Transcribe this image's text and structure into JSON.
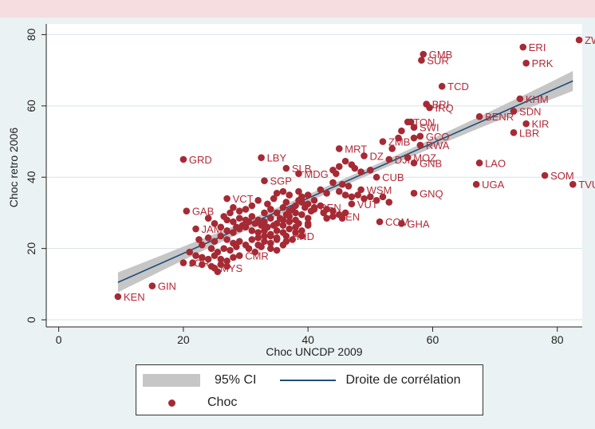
{
  "chart_data": {
    "type": "scatter",
    "xlabel": "Choc UNCDP 2009",
    "ylabel": "Choc retro 2006",
    "xlim": [
      -2,
      84
    ],
    "ylim": [
      -2,
      83
    ],
    "xticks": [
      0,
      20,
      40,
      60,
      80
    ],
    "yticks": [
      0,
      20,
      40,
      60,
      80
    ],
    "grid": "horizontal",
    "legend_position": "bottom",
    "colors": {
      "points": "#a52a34",
      "labels": "#b12a38",
      "fit": "#1f4e79",
      "ci": "#c6c6c6",
      "plot_bg": "#ffffff",
      "outer_bg": "#eaf2f3"
    },
    "fit_line": {
      "x": [
        9.5,
        82.5
      ],
      "y": [
        10.5,
        67
      ],
      "ci_halfwidth_ends": 2.8,
      "ci_halfwidth_mid": 1.0
    },
    "legend": {
      "ci_label": "95% CI",
      "line_label": "Droite de corrélation",
      "points_label": "Choc"
    },
    "labeled_points": [
      {
        "label": "ZWE",
        "x": 83.5,
        "y": 78.5
      },
      {
        "label": "ERI",
        "x": 74.5,
        "y": 76.5
      },
      {
        "label": "PRK",
        "x": 75.0,
        "y": 72.0
      },
      {
        "label": "GMB",
        "x": 58.5,
        "y": 74.5
      },
      {
        "label": "SUR",
        "x": 58.2,
        "y": 72.8
      },
      {
        "label": "TCD",
        "x": 61.5,
        "y": 65.5
      },
      {
        "label": "KHM",
        "x": 74.0,
        "y": 62.0
      },
      {
        "label": "SDN",
        "x": 73.0,
        "y": 58.5
      },
      {
        "label": "IRQ",
        "x": 59.5,
        "y": 59.5
      },
      {
        "label": "BRI",
        "x": 59.0,
        "y": 60.5
      },
      {
        "label": "BENR",
        "x": 67.5,
        "y": 57.0
      },
      {
        "label": "KIR",
        "x": 75.0,
        "y": 55.0
      },
      {
        "label": "LBR",
        "x": 73.0,
        "y": 52.5
      },
      {
        "label": "TON",
        "x": 56.0,
        "y": 55.5
      },
      {
        "label": "SWI",
        "x": 57.0,
        "y": 54.0
      },
      {
        "label": "GCO",
        "x": 58.0,
        "y": 51.5
      },
      {
        "label": "ZMB",
        "x": 52.0,
        "y": 50.0
      },
      {
        "label": "RWA",
        "x": 58.0,
        "y": 49.0
      },
      {
        "label": "MRT",
        "x": 45.0,
        "y": 48.0
      },
      {
        "label": "DZ",
        "x": 49.0,
        "y": 46.0
      },
      {
        "label": "MOZ",
        "x": 56.0,
        "y": 45.5
      },
      {
        "label": "DJI",
        "x": 53.0,
        "y": 45.0
      },
      {
        "label": "GNB",
        "x": 57.0,
        "y": 44.0
      },
      {
        "label": "LAO",
        "x": 67.5,
        "y": 44.0
      },
      {
        "label": "GRD",
        "x": 20.0,
        "y": 45.0
      },
      {
        "label": "LBY",
        "x": 32.5,
        "y": 45.5
      },
      {
        "label": "SLB",
        "x": 36.5,
        "y": 42.5
      },
      {
        "label": "MDG",
        "x": 38.5,
        "y": 41.0
      },
      {
        "label": "CUB",
        "x": 51.0,
        "y": 40.0
      },
      {
        "label": "SOM",
        "x": 78.0,
        "y": 40.5
      },
      {
        "label": "TVU",
        "x": 82.5,
        "y": 38.0
      },
      {
        "label": "UGA",
        "x": 67.0,
        "y": 38.0
      },
      {
        "label": "SGP",
        "x": 33.0,
        "y": 39.0
      },
      {
        "label": "GNQ",
        "x": 57.0,
        "y": 35.5
      },
      {
        "label": "WSM",
        "x": 48.5,
        "y": 36.5
      },
      {
        "label": "VCT",
        "x": 27.0,
        "y": 34.0
      },
      {
        "label": "VUT",
        "x": 47.0,
        "y": 32.5
      },
      {
        "label": "BEN",
        "x": 41.0,
        "y": 31.5
      },
      {
        "label": "GAB",
        "x": 20.5,
        "y": 30.5
      },
      {
        "label": "BEN",
        "x": 44.0,
        "y": 29.0
      },
      {
        "label": "COM",
        "x": 51.5,
        "y": 27.5
      },
      {
        "label": "GHA",
        "x": 55.0,
        "y": 27.0
      },
      {
        "label": "HND",
        "x": 36.5,
        "y": 23.5
      },
      {
        "label": "JAM",
        "x": 22.0,
        "y": 25.5
      },
      {
        "label": "CMR",
        "x": 29.0,
        "y": 18.0
      },
      {
        "label": "JOR",
        "x": 20.0,
        "y": 16.0
      },
      {
        "label": "MYS",
        "x": 25.0,
        "y": 14.5
      },
      {
        "label": "GIN",
        "x": 15.0,
        "y": 9.5
      },
      {
        "label": "KEN",
        "x": 9.5,
        "y": 6.5
      }
    ],
    "other_points": [
      [
        55,
        53
      ],
      [
        57,
        51
      ],
      [
        56.5,
        55.5
      ],
      [
        54.5,
        51
      ],
      [
        53.5,
        48
      ],
      [
        47,
        43.5
      ],
      [
        46,
        44.5
      ],
      [
        45,
        43
      ],
      [
        44,
        42
      ],
      [
        47.5,
        42.5
      ],
      [
        48.5,
        41.5
      ],
      [
        50,
        42
      ],
      [
        44.5,
        41
      ],
      [
        42,
        36.5
      ],
      [
        43,
        35.5
      ],
      [
        45,
        36
      ],
      [
        46,
        35
      ],
      [
        47,
        34.5
      ],
      [
        48,
        35
      ],
      [
        49,
        34
      ],
      [
        50,
        34.5
      ],
      [
        51,
        33.5
      ],
      [
        52,
        34.5
      ],
      [
        53,
        33
      ],
      [
        45.5,
        38
      ],
      [
        46.5,
        37.5
      ],
      [
        44,
        38.5
      ],
      [
        38.5,
        36
      ],
      [
        39,
        34.5
      ],
      [
        40,
        35
      ],
      [
        41,
        33.5
      ],
      [
        37,
        35
      ],
      [
        36,
        36
      ],
      [
        35,
        35.5
      ],
      [
        34.5,
        34
      ],
      [
        36.5,
        33
      ],
      [
        38,
        32
      ],
      [
        39,
        33
      ],
      [
        40,
        32.5
      ],
      [
        41,
        31
      ],
      [
        42,
        32
      ],
      [
        43,
        31
      ],
      [
        42.5,
        30
      ],
      [
        44,
        30.5
      ],
      [
        45,
        29.5
      ],
      [
        46,
        30
      ],
      [
        45.5,
        28.5
      ],
      [
        43,
        28.5
      ],
      [
        32,
        33.5
      ],
      [
        31,
        32
      ],
      [
        30,
        31
      ],
      [
        29,
        30.5
      ],
      [
        28,
        31.5
      ],
      [
        27.5,
        30
      ],
      [
        26.5,
        29
      ],
      [
        27,
        28
      ],
      [
        28,
        27.5
      ],
      [
        29,
        28.5
      ],
      [
        30,
        28
      ],
      [
        31,
        29
      ],
      [
        32,
        28
      ],
      [
        33,
        27.5
      ],
      [
        34,
        28.5
      ],
      [
        35,
        27
      ],
      [
        36,
        28
      ],
      [
        37,
        29
      ],
      [
        38,
        28
      ],
      [
        39,
        29.5
      ],
      [
        40,
        28.5
      ],
      [
        33,
        30
      ],
      [
        34,
        31
      ],
      [
        35,
        30
      ],
      [
        36,
        31.5
      ],
      [
        37,
        30.5
      ],
      [
        38,
        30
      ],
      [
        33.5,
        32.5
      ],
      [
        24,
        28.5
      ],
      [
        25,
        27
      ],
      [
        26,
        26
      ],
      [
        27,
        25
      ],
      [
        28,
        24.5
      ],
      [
        29,
        25.5
      ],
      [
        30,
        26
      ],
      [
        31,
        25
      ],
      [
        32,
        24.5
      ],
      [
        33,
        25
      ],
      [
        34,
        24
      ],
      [
        35,
        25
      ],
      [
        36,
        24.5
      ],
      [
        37,
        25.5
      ],
      [
        38,
        26
      ],
      [
        39,
        25
      ],
      [
        40,
        26.5
      ],
      [
        24,
        23
      ],
      [
        25,
        22
      ],
      [
        26,
        23.5
      ],
      [
        27,
        22.5
      ],
      [
        28,
        21.5
      ],
      [
        29,
        22
      ],
      [
        30,
        21
      ],
      [
        31,
        22.5
      ],
      [
        32,
        21
      ],
      [
        33,
        22
      ],
      [
        34,
        21.5
      ],
      [
        35,
        22.5
      ],
      [
        36,
        21
      ],
      [
        22.5,
        22.5
      ],
      [
        23,
        21
      ],
      [
        24.5,
        20
      ],
      [
        25.5,
        19
      ],
      [
        26.5,
        20
      ],
      [
        27.5,
        19.5
      ],
      [
        28.5,
        20.5
      ],
      [
        30.5,
        20
      ],
      [
        31.5,
        19
      ],
      [
        32.5,
        20.5
      ],
      [
        34,
        20
      ],
      [
        35,
        19.5
      ],
      [
        21,
        19
      ],
      [
        22,
        18
      ],
      [
        23,
        17.5
      ],
      [
        24,
        17
      ],
      [
        25,
        18
      ],
      [
        26,
        17
      ],
      [
        27,
        16.5
      ],
      [
        28,
        17.5
      ],
      [
        21.5,
        16
      ],
      [
        23,
        15.5
      ],
      [
        24.5,
        15
      ],
      [
        26,
        15.5
      ],
      [
        27,
        15
      ],
      [
        25.5,
        13.5
      ],
      [
        38.5,
        33.5
      ],
      [
        39.5,
        31.5
      ],
      [
        40.5,
        30.5
      ],
      [
        37.5,
        31
      ],
      [
        36.5,
        29.5
      ],
      [
        35.5,
        28.5
      ],
      [
        34.5,
        26.5
      ],
      [
        33.5,
        26
      ],
      [
        32.5,
        26.5
      ],
      [
        31.5,
        27
      ],
      [
        30.5,
        27.5
      ],
      [
        29.5,
        26.5
      ],
      [
        28.5,
        26
      ],
      [
        36,
        26.5
      ],
      [
        37,
        27.5
      ],
      [
        38,
        24.5
      ],
      [
        39,
        23.5
      ],
      [
        35,
        23
      ],
      [
        34,
        23.5
      ],
      [
        33,
        23.5
      ],
      [
        32,
        23
      ],
      [
        37.5,
        22.5
      ],
      [
        36.5,
        22
      ],
      [
        38.5,
        27
      ],
      [
        40,
        27
      ]
    ]
  }
}
